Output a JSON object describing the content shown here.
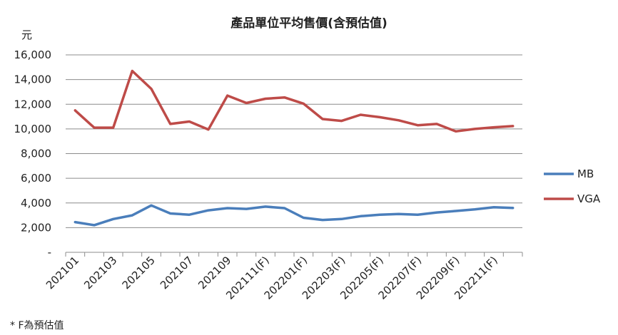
{
  "chart_data": {
    "type": "line",
    "title": "產品單位平均售價(含預估值)",
    "unit_label": "元",
    "x": [
      "202101",
      "202102",
      "202103",
      "202104",
      "202105",
      "202106",
      "202107",
      "202108",
      "202109",
      "202110",
      "202111(F)",
      "202112(F)",
      "202201(F)",
      "202202(F)",
      "202203(F)",
      "202204(F)",
      "202205(F)",
      "202206(F)",
      "202207(F)",
      "202208(F)",
      "202209(F)",
      "202210(F)",
      "202211(F)",
      "202212(F)"
    ],
    "x_tick_labels": [
      "202101",
      "202103",
      "202105",
      "202107",
      "202109",
      "202111(F)",
      "202201(F)",
      "202203(F)",
      "202205(F)",
      "202207(F)",
      "202209(F)",
      "202211(F)"
    ],
    "y_tick_labels": [
      "-",
      "2,000",
      "4,000",
      "6,000",
      "8,000",
      "10,000",
      "12,000",
      "14,000",
      "16,000"
    ],
    "ylim": [
      0,
      16000
    ],
    "grid": true,
    "legend_position": "right",
    "series": [
      {
        "name": "MB",
        "color": "#4a7ebb",
        "values": [
          2450,
          2200,
          2700,
          3000,
          3800,
          3150,
          3050,
          3400,
          3580,
          3520,
          3700,
          3580,
          2800,
          2620,
          2700,
          2930,
          3050,
          3100,
          3050,
          3230,
          3350,
          3480,
          3650,
          3600
        ]
      },
      {
        "name": "VGA",
        "color": "#be4b48",
        "values": [
          11500,
          10100,
          10100,
          14700,
          13250,
          10400,
          10600,
          9950,
          12700,
          12100,
          12450,
          12550,
          12050,
          10800,
          10650,
          11150,
          10950,
          10700,
          10300,
          10400,
          9800,
          10000,
          10130,
          10230
        ]
      }
    ]
  },
  "footnote": "* F為預估值"
}
